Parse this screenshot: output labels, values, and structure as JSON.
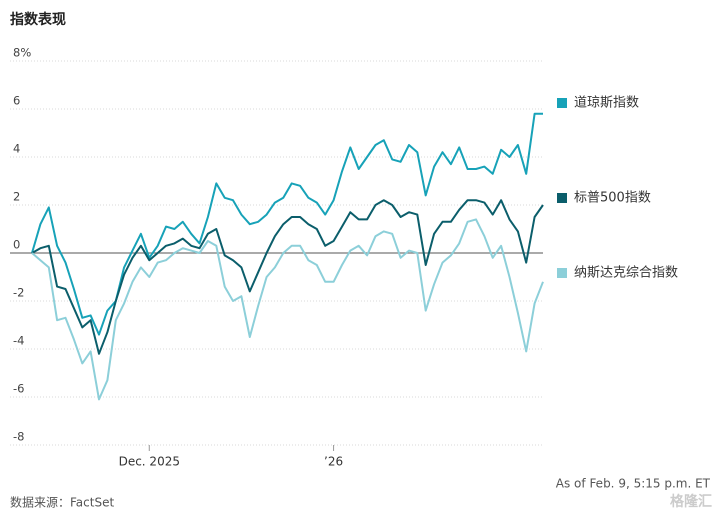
{
  "chart_data": {
    "type": "line",
    "title": "指数表现",
    "source": "数据来源：FactSet",
    "note": "As of Feb. 9, 5:15 p.m. ET",
    "watermark": "格隆汇",
    "categories": [
      null,
      null,
      null,
      null,
      null,
      null,
      null,
      null,
      null,
      null,
      null,
      null,
      null,
      null,
      "Dec. 2025",
      null,
      null,
      null,
      null,
      null,
      null,
      null,
      null,
      null,
      null,
      null,
      null,
      null,
      null,
      null,
      null,
      null,
      null,
      null,
      null,
      null,
      "’26",
      null,
      null,
      null,
      null,
      null,
      null,
      null,
      null,
      null,
      null,
      null,
      null,
      null,
      null,
      null,
      null,
      null,
      null,
      null,
      null,
      null,
      null,
      null,
      null,
      null
    ],
    "ylim": [
      -8,
      8
    ],
    "yticks": [
      {
        "value": 8,
        "label": "8%"
      },
      6,
      4,
      2,
      0,
      -2,
      -4,
      -6,
      -8
    ],
    "grid": true,
    "series": [
      {
        "name": "道琼斯指数",
        "color": "#17a2b8",
        "values": [
          0,
          1.2,
          1.9,
          0.3,
          -0.4,
          -1.5,
          -2.7,
          -2.6,
          -3.4,
          -2.4,
          -2.0,
          -0.6,
          0.1,
          0.8,
          -0.2,
          0.3,
          1.1,
          1.0,
          1.3,
          0.8,
          0.4,
          1.5,
          2.9,
          2.3,
          2.2,
          1.6,
          1.2,
          1.3,
          1.6,
          2.1,
          2.3,
          2.9,
          2.8,
          2.3,
          2.1,
          1.6,
          2.2,
          3.4,
          4.4,
          3.5,
          4.0,
          4.5,
          4.7,
          3.9,
          3.8,
          4.5,
          4.2,
          2.4,
          3.6,
          4.2,
          3.7,
          4.4,
          3.5,
          3.5,
          3.6,
          3.3,
          4.3,
          4.0,
          4.5,
          3.3,
          5.8,
          5.8
        ]
      },
      {
        "name": "标普500指数",
        "color": "#0b5e6b",
        "values": [
          0,
          0.2,
          0.3,
          -1.4,
          -1.5,
          -2.3,
          -3.1,
          -2.8,
          -4.2,
          -3.3,
          -2.0,
          -0.9,
          -0.2,
          0.3,
          -0.3,
          0,
          0.3,
          0.4,
          0.6,
          0.3,
          0.2,
          0.8,
          1.0,
          -0.1,
          -0.3,
          -0.6,
          -1.6,
          -0.8,
          0,
          0.7,
          1.2,
          1.5,
          1.5,
          1.2,
          1.0,
          0.3,
          0.5,
          1.1,
          1.7,
          1.4,
          1.4,
          2.0,
          2.2,
          2.0,
          1.5,
          1.7,
          1.6,
          -0.5,
          0.8,
          1.3,
          1.3,
          1.8,
          2.2,
          2.2,
          2.1,
          1.6,
          2.2,
          1.4,
          0.9,
          -0.4,
          1.5,
          2.0
        ]
      },
      {
        "name": "纳斯达克综合指数",
        "color": "#8ccfd9",
        "values": [
          0,
          -0.3,
          -0.6,
          -2.8,
          -2.7,
          -3.6,
          -4.6,
          -4.1,
          -6.1,
          -5.3,
          -2.8,
          -2.1,
          -1.2,
          -0.6,
          -1.0,
          -0.4,
          -0.3,
          0,
          0.2,
          0.1,
          0,
          0.5,
          0.3,
          -1.4,
          -2.0,
          -1.8,
          -3.5,
          -2.2,
          -1.0,
          -0.6,
          0,
          0.3,
          0.3,
          -0.3,
          -0.5,
          -1.2,
          -1.2,
          -0.5,
          0.1,
          0.3,
          -0.1,
          0.7,
          0.9,
          0.8,
          -0.2,
          0.1,
          0,
          -2.4,
          -1.3,
          -0.4,
          -0.1,
          0.4,
          1.3,
          1.4,
          0.7,
          -0.2,
          0.3,
          -1.0,
          -2.5,
          -4.1,
          -2.1,
          -1.2
        ]
      }
    ]
  }
}
